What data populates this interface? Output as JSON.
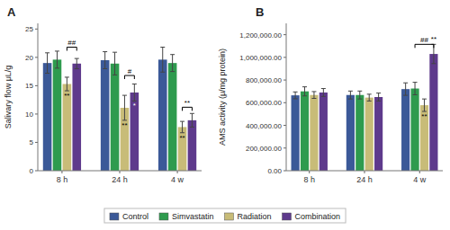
{
  "chart_data": [
    {
      "type": "bar",
      "title": "A",
      "ylabel": "Salivary flow μL/g",
      "categories": [
        "8 h",
        "24 h",
        "4 w"
      ],
      "ylim": [
        0,
        26
      ],
      "yticks": [
        0,
        5,
        10,
        15,
        20,
        25
      ],
      "legend": "bottom",
      "series": [
        {
          "name": "Control",
          "color": "#3b5998",
          "values": [
            19.0,
            19.5,
            19.6
          ],
          "errors": [
            1.8,
            1.5,
            2.2
          ]
        },
        {
          "name": "Simvastatin",
          "color": "#2e9b4e",
          "values": [
            19.6,
            18.9,
            19.0
          ],
          "errors": [
            1.5,
            2.0,
            1.5
          ]
        },
        {
          "name": "Radiation",
          "color": "#c8bc78",
          "values": [
            15.3,
            11.1,
            7.7
          ],
          "errors": [
            1.2,
            2.2,
            1.0
          ]
        },
        {
          "name": "Combination",
          "color": "#5e3a8c",
          "values": [
            18.9,
            13.8,
            8.9
          ],
          "errors": [
            0.9,
            1.5,
            1.2
          ]
        }
      ],
      "annotations": [
        {
          "text": "**",
          "category": 0,
          "series": 2
        },
        {
          "text": "##",
          "category": 0,
          "series": [
            2,
            3
          ],
          "y": 21.8
        },
        {
          "text": "**",
          "category": 1,
          "series": 2
        },
        {
          "text": "*",
          "category": 1,
          "series": 3
        },
        {
          "text": "#",
          "category": 1,
          "series": [
            2,
            3
          ],
          "y": 16.8
        },
        {
          "text": "**",
          "category": 2,
          "series": 2
        },
        {
          "text": "**",
          "category": 2,
          "series": [
            2,
            3
          ],
          "y": 11.2
        }
      ]
    },
    {
      "type": "bar",
      "title": "B",
      "ylabel": "AMS activity (μ/mg protein)",
      "categories": [
        "8 h",
        "24 h",
        "4 w"
      ],
      "ylim": [
        0,
        1300000
      ],
      "yticks": [
        {
          "value": 0,
          "label": "0.00"
        },
        {
          "value": 200000,
          "label": "200,000.00"
        },
        {
          "value": 400000,
          "label": "400,000.00"
        },
        {
          "value": 600000,
          "label": "600,000.00"
        },
        {
          "value": 800000,
          "label": "800,000.00"
        },
        {
          "value": 1000000,
          "label": "1,000,000.00"
        },
        {
          "value": 1200000,
          "label": "1,200,000.00"
        }
      ],
      "series": [
        {
          "color": "#3b5998",
          "values": [
            665000,
            668000,
            720000
          ],
          "errors": [
            30000,
            35000,
            55000
          ]
        },
        {
          "color": "#2e9b4e",
          "values": [
            700000,
            668000,
            725000
          ],
          "errors": [
            40000,
            35000,
            55000
          ]
        },
        {
          "color": "#c8bc78",
          "values": [
            668000,
            645000,
            578000
          ],
          "errors": [
            30000,
            30000,
            55000
          ]
        },
        {
          "color": "#5e3a8c",
          "values": [
            690000,
            650000,
            1030000
          ],
          "errors": [
            35000,
            35000,
            85000
          ]
        }
      ],
      "annotations": [
        {
          "text": "**",
          "category": 2,
          "series": 2
        },
        {
          "text": "##",
          "category": 2,
          "series": [
            1,
            3
          ],
          "y": 1115000
        },
        {
          "text": "**",
          "category": 2,
          "series": 3,
          "anchor": "above"
        }
      ]
    }
  ]
}
